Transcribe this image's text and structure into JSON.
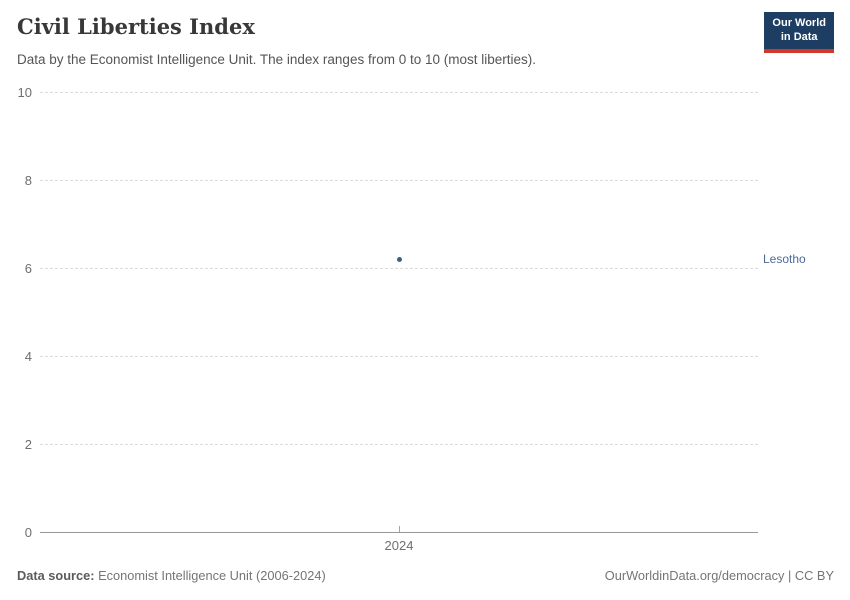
{
  "header": {
    "title": "Civil Liberties Index",
    "subtitle": "Data by the Economist Intelligence Unit. The index ranges from 0 to 10 (most liberties).",
    "logo": {
      "line1": "Our World",
      "line2": "in Data"
    }
  },
  "chart_data": {
    "type": "scatter",
    "title": "Civil Liberties Index",
    "xlabel": "",
    "ylabel": "",
    "x": [
      2024
    ],
    "series": [
      {
        "name": "Lesotho",
        "values": [
          6.2
        ]
      }
    ],
    "xticks": [
      "2024"
    ],
    "yticks": [
      0,
      2,
      4,
      6,
      8,
      10
    ],
    "ylim": [
      0,
      10
    ],
    "grid": "horizontal-dashed",
    "legend_position": "entity-label-right"
  },
  "footer": {
    "source_label": "Data source:",
    "source_text": " Economist Intelligence Unit (2006-2024)",
    "link_text": "OurWorldinData.org/democracy | CC BY"
  },
  "colors": {
    "point": "#3d5e8f",
    "entity_label": "#4c6a9c",
    "logo_bg": "#1d3d63",
    "logo_accent": "#d0382c",
    "grid": "#dcdcdc",
    "axis": "#999999",
    "title_text": "#383838",
    "tick_text": "#6e6e6e"
  }
}
